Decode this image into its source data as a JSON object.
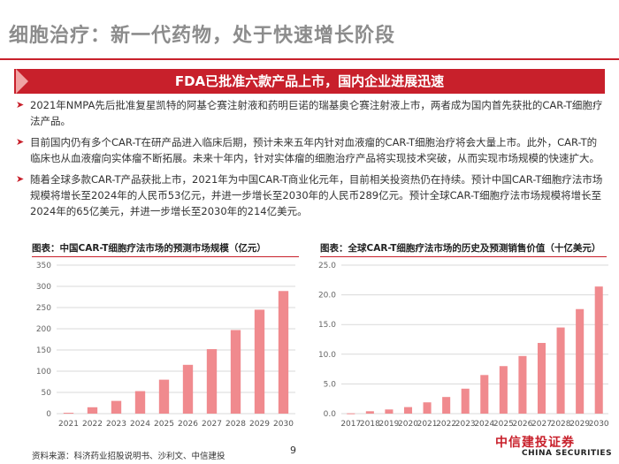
{
  "title": "细胞治疗：新一代药物，处于快速增长阶段",
  "banner": "FDA已批准六款产品上市，国内企业进展迅速",
  "bullets": [
    "2021年NMPA先后批准复星凯特的阿基仑赛注射液和药明巨诺的瑞基奥仑赛注射液上市，两者成为国内首先获批的CAR-T细胞疗法产品。",
    "目前国内仍有多个CAR-T在研产品进入临床后期，预计未来五年内针对血液瘤的CAR-T细胞治疗将会大量上市。此外，CAR-T的临床也从血液瘤向实体瘤不断拓展。未来十年内，针对实体瘤的细胞治疗产品将实现技术突破，从而实现市场规模的快速扩大。",
    "随着全球多款CAR-T产品获批上市，2021年为中国CAR-T商业化元年，目前相关投资热仍在持续。预计中国CAR-T细胞疗法市场规模将增长至2024年的人民币53亿元，并进一步增长至2030年的人民币289亿元。预计全球CAR-T细胞疗法市场规模将增长至2024年的65亿美元，并进一步增长至2030年的214亿美元。"
  ],
  "chart_data": [
    {
      "type": "bar",
      "title": "图表：中国CAR-T细胞疗法市场的预测市场规模（亿元）",
      "categories": [
        "2021",
        "2022",
        "2023",
        "2024",
        "2025",
        "2026",
        "2027",
        "2028",
        "2029",
        "2030"
      ],
      "values": [
        2,
        15,
        30,
        53,
        80,
        115,
        152,
        197,
        245,
        289
      ],
      "yticks": [
        0,
        50,
        100,
        150,
        200,
        250,
        300,
        350
      ],
      "ylim": [
        0,
        350
      ],
      "color": "#f08a8e",
      "grid": true
    },
    {
      "type": "bar",
      "title": "图表：全球CAR-T细胞疗法市场的历史及预测销售价值（十亿美元）",
      "categories": [
        "2017",
        "2018",
        "2019",
        "2020",
        "2021",
        "2022",
        "2023",
        "2024",
        "2025",
        "2026",
        "2027",
        "2028",
        "2029",
        "2030"
      ],
      "values": [
        0.05,
        0.4,
        0.7,
        1.1,
        1.9,
        2.8,
        4.2,
        6.5,
        8.0,
        9.7,
        11.9,
        14.5,
        17.6,
        21.4
      ],
      "yticks": [
        0.0,
        5.0,
        10.0,
        15.0,
        20.0,
        25.0
      ],
      "ylim": [
        0,
        25
      ],
      "decimals": 1,
      "color": "#f08a8e",
      "grid": true
    }
  ],
  "source": "资料来源：科济药业招股说明书、沙利文、中信建投",
  "page_number": "9",
  "logo": {
    "cn": "中信建投证券",
    "en": "CHINA SECURITIES",
    "color": "#c8202b"
  }
}
